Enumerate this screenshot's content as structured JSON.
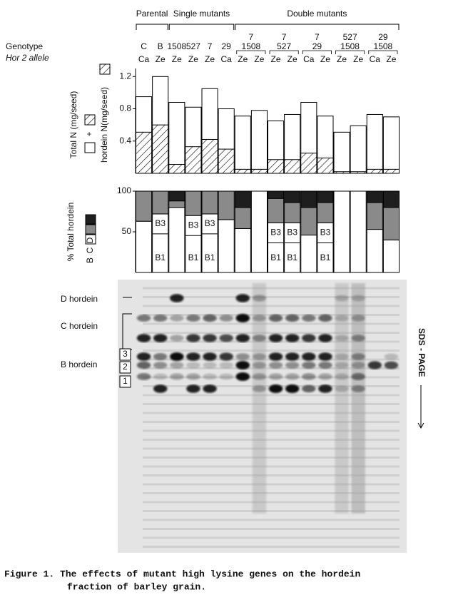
{
  "figure": {
    "groups": [
      {
        "label": "Parental",
        "genotypes": [
          0,
          1
        ]
      },
      {
        "label": "Single mutants",
        "genotypes": [
          2,
          3,
          4,
          5
        ]
      },
      {
        "label": "Double mutants",
        "genotypes": [
          6,
          7,
          8,
          9,
          10
        ]
      }
    ],
    "genotype_label": "Genotype",
    "allele_label": "Hor 2 allele",
    "genotypes": [
      {
        "lines": [
          "C"
        ],
        "alleles": [
          "Ca"
        ]
      },
      {
        "lines": [
          "B"
        ],
        "alleles": [
          "Ze"
        ]
      },
      {
        "lines": [
          "1508"
        ],
        "alleles": [
          "Ze"
        ]
      },
      {
        "lines": [
          "527"
        ],
        "alleles": [
          "Ze"
        ]
      },
      {
        "lines": [
          "7"
        ],
        "alleles": [
          "Ze"
        ]
      },
      {
        "lines": [
          "29"
        ],
        "alleles": [
          "Ca"
        ]
      },
      {
        "lines": [
          "7",
          "1508"
        ],
        "alleles": [
          "Ze",
          "Ze"
        ]
      },
      {
        "lines": [
          "7",
          "527"
        ],
        "alleles": [
          "Ze",
          "Ze"
        ]
      },
      {
        "lines": [
          "7",
          "29"
        ],
        "alleles": [
          "Ca",
          "Ze"
        ]
      },
      {
        "lines": [
          "527",
          "1508"
        ],
        "alleles": [
          "Ze",
          "Ze"
        ]
      },
      {
        "lines": [
          "29",
          "1508"
        ],
        "alleles": [
          "Ca",
          "Ze"
        ]
      }
    ],
    "gel": {
      "labels": [
        "D hordein",
        "C hordein",
        "B hordein"
      ],
      "b_bands": [
        "3",
        "2",
        "1"
      ],
      "method": "SDS - PAGE"
    },
    "caption": [
      "Figure 1. The effects of mutant high lysine genes on the hordein",
      "fraction of barley grain."
    ]
  },
  "chart_data": [
    {
      "type": "bar",
      "stacked": false,
      "ylabel": "Total N (mg/seed)",
      "ylabel_joiner": "+",
      "ylim": [
        0,
        1.3
      ],
      "yticks": [
        0.4,
        0.8,
        1.2
      ],
      "series": [
        {
          "name": "Total N (mg/seed)",
          "color": "#ffffff",
          "hatch": false,
          "values": [
            0.95,
            1.2,
            0.88,
            0.82,
            1.05,
            0.8,
            0.71,
            0.78,
            0.65,
            0.73,
            0.88,
            0.71,
            0.51,
            0.59,
            0.73,
            0.7
          ]
        },
        {
          "name": "hordein N(mg/seed)",
          "color": "#000000",
          "hatch": true,
          "values": [
            0.51,
            0.6,
            0.11,
            0.33,
            0.42,
            0.3,
            0.05,
            0.05,
            0.17,
            0.17,
            0.25,
            0.19,
            0.02,
            0.02,
            0.05,
            0.05
          ]
        }
      ]
    },
    {
      "type": "bar",
      "stacked": true,
      "ylabel": "% Total hordein",
      "ylim": [
        0,
        100
      ],
      "yticks": [
        50,
        100
      ],
      "series": [
        {
          "name": "B",
          "color": "#ffffff",
          "values": [
            63,
            72,
            80,
            70,
            72,
            65,
            54,
            100,
            61,
            61,
            46,
            61,
            100,
            100,
            53,
            40
          ]
        },
        {
          "name": "C",
          "color": "#8a8a8a",
          "values": [
            37,
            28,
            8,
            30,
            28,
            35,
            26,
            0,
            30,
            25,
            34,
            25,
            0,
            0,
            33,
            40
          ]
        },
        {
          "name": "D",
          "color": "#1e1e1e",
          "values": [
            0,
            0,
            12,
            0,
            0,
            0,
            20,
            0,
            9,
            14,
            20,
            14,
            0,
            0,
            14,
            20
          ]
        }
      ],
      "upper_labels": [
        null,
        "B3",
        null,
        "B3",
        "B3",
        null,
        null,
        null,
        "B3",
        "B3",
        null,
        "B3",
        null,
        null,
        null,
        null
      ],
      "lower_labels": [
        null,
        "B1",
        null,
        "B1",
        "B1",
        null,
        null,
        null,
        "B1",
        "B1",
        null,
        "B1",
        null,
        null,
        null,
        null
      ]
    }
  ]
}
